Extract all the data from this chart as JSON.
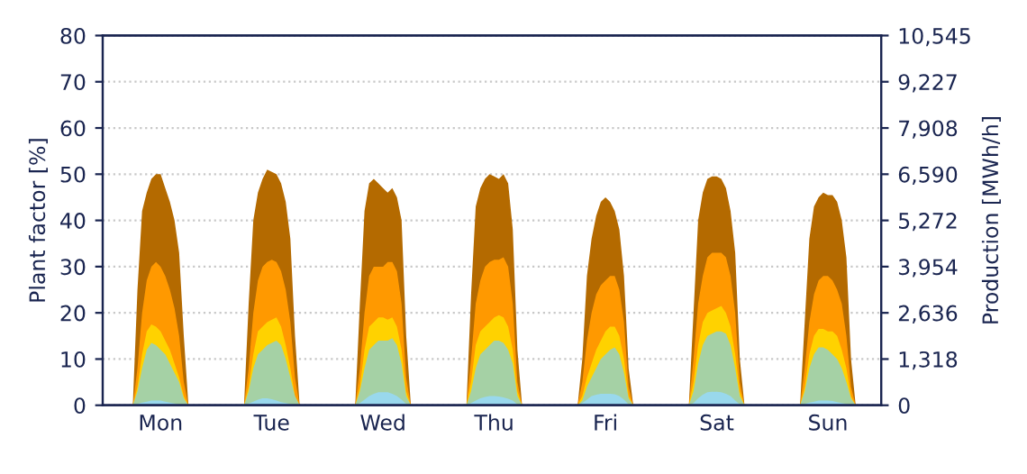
{
  "chart_data": {
    "type": "area",
    "ylabel": "Plant factor [%]",
    "y2label": "Production [MWh/h]",
    "categories": [
      null,
      null,
      null,
      null,
      null,
      null,
      null,
      null,
      null,
      null,
      null,
      null,
      "Mon",
      null,
      null,
      null,
      null,
      null,
      null,
      null,
      null,
      null,
      null,
      null,
      null,
      null,
      null,
      null,
      null,
      null,
      null,
      null,
      null,
      null,
      null,
      null,
      "Tue",
      null,
      null,
      null,
      null,
      null,
      null,
      null,
      null,
      null,
      null,
      null,
      null,
      null,
      null,
      null,
      null,
      null,
      null,
      null,
      null,
      null,
      null,
      null,
      "Wed",
      null,
      null,
      null,
      null,
      null,
      null,
      null,
      null,
      null,
      null,
      null,
      null,
      null,
      null,
      null,
      null,
      null,
      null,
      null,
      null,
      null,
      null,
      null,
      "Thu",
      null,
      null,
      null,
      null,
      null,
      null,
      null,
      null,
      null,
      null,
      null,
      null,
      null,
      null,
      null,
      null,
      null,
      null,
      null,
      null,
      null,
      null,
      null,
      "Fri",
      null,
      null,
      null,
      null,
      null,
      null,
      null,
      null,
      null,
      null,
      null,
      null,
      null,
      null,
      null,
      null,
      null,
      null,
      null,
      null,
      null,
      null,
      null,
      "Sat",
      null,
      null,
      null,
      null,
      null,
      null,
      null,
      null,
      null,
      null,
      null,
      null,
      null,
      null,
      null,
      null,
      null,
      null,
      null,
      null,
      null,
      null,
      null,
      "Sun",
      null,
      null,
      null,
      null,
      null,
      null,
      null,
      null,
      null,
      null,
      null
    ],
    "series": [
      {
        "color": "#b46a00",
        "values": [
          null,
          null,
          null,
          null,
          null,
          null,
          0,
          25,
          42,
          46,
          49,
          50,
          50,
          47,
          44,
          40,
          33,
          15,
          0,
          null,
          null,
          null,
          null,
          null,
          null,
          null,
          null,
          null,
          null,
          null,
          0,
          22,
          40,
          46,
          49,
          51,
          50.5,
          50,
          48,
          44,
          36,
          15,
          0,
          null,
          null,
          null,
          null,
          null,
          null,
          null,
          null,
          null,
          null,
          null,
          0,
          22,
          42,
          48,
          49,
          48,
          47,
          46,
          47,
          45,
          40,
          15,
          0,
          null,
          null,
          null,
          null,
          null,
          null,
          null,
          null,
          null,
          null,
          null,
          0,
          24,
          43,
          47,
          49,
          50,
          49.5,
          49,
          50,
          48,
          38,
          12,
          0,
          null,
          null,
          null,
          null,
          null,
          null,
          null,
          null,
          null,
          null,
          null,
          0,
          10,
          28,
          36,
          41,
          44,
          45,
          44,
          42,
          38,
          28,
          8,
          0,
          null,
          null,
          null,
          null,
          null,
          null,
          null,
          null,
          null,
          null,
          null,
          0,
          20,
          40,
          46,
          49,
          49.5,
          49.5,
          49,
          47,
          42,
          33,
          10,
          0,
          null,
          null,
          null,
          null,
          null,
          null,
          null,
          null,
          null,
          null,
          null,
          0,
          18,
          36,
          43,
          45,
          46,
          45.5,
          45.5,
          44,
          40,
          32,
          10,
          0,
          null,
          null,
          null,
          null,
          null
        ]
      },
      {
        "color": "#ff9900",
        "values": [
          null,
          null,
          null,
          null,
          null,
          null,
          0,
          8,
          20,
          27,
          30,
          31,
          30,
          28,
          25,
          21,
          15,
          5,
          0,
          null,
          null,
          null,
          null,
          null,
          null,
          null,
          null,
          null,
          null,
          null,
          0,
          8,
          20,
          27,
          30,
          31,
          31.5,
          31,
          29,
          25,
          18,
          6,
          0,
          null,
          null,
          null,
          null,
          null,
          null,
          null,
          null,
          null,
          null,
          null,
          0,
          8,
          20,
          28,
          30,
          30,
          30,
          31,
          31,
          29,
          22,
          6,
          0,
          null,
          null,
          null,
          null,
          null,
          null,
          null,
          null,
          null,
          null,
          null,
          0,
          10,
          22,
          27,
          30,
          31,
          31.5,
          31.5,
          32,
          30,
          22,
          5,
          0,
          null,
          null,
          null,
          null,
          null,
          null,
          null,
          null,
          null,
          null,
          null,
          0,
          5,
          14,
          20,
          24,
          26,
          27,
          28,
          28,
          25,
          18,
          4,
          0,
          null,
          null,
          null,
          null,
          null,
          null,
          null,
          null,
          null,
          null,
          null,
          0,
          10,
          22,
          28,
          32,
          33,
          33,
          33,
          32,
          28,
          20,
          5,
          0,
          null,
          null,
          null,
          null,
          null,
          null,
          null,
          null,
          null,
          null,
          null,
          0,
          8,
          18,
          24,
          27,
          28,
          28,
          27,
          25,
          22,
          15,
          4,
          0,
          null,
          null,
          null,
          null,
          null
        ]
      },
      {
        "color": "#ffd200",
        "values": [
          null,
          null,
          null,
          null,
          null,
          null,
          0,
          4,
          11,
          16,
          17.5,
          17,
          16,
          14,
          12,
          9,
          6,
          2,
          0,
          null,
          null,
          null,
          null,
          null,
          null,
          null,
          null,
          null,
          null,
          null,
          0,
          4,
          11,
          16,
          17,
          18,
          18.5,
          19,
          17,
          13,
          8,
          2,
          0,
          null,
          null,
          null,
          null,
          null,
          null,
          null,
          null,
          null,
          null,
          null,
          0,
          4,
          12,
          17,
          18,
          19,
          19,
          18.5,
          19,
          17,
          12,
          3,
          0,
          null,
          null,
          null,
          null,
          null,
          null,
          null,
          null,
          null,
          null,
          null,
          0,
          5,
          13,
          16,
          17,
          18,
          19,
          19.5,
          19,
          17,
          12,
          3,
          0,
          null,
          null,
          null,
          null,
          null,
          null,
          null,
          null,
          null,
          null,
          null,
          0,
          2,
          6,
          9,
          12,
          14,
          16,
          17,
          17,
          15,
          10,
          2,
          0,
          null,
          null,
          null,
          null,
          null,
          null,
          null,
          null,
          null,
          null,
          null,
          0,
          5,
          13,
          18,
          20,
          20.5,
          21,
          21.5,
          20,
          17,
          11,
          3,
          0,
          null,
          null,
          null,
          null,
          null,
          null,
          null,
          null,
          null,
          null,
          null,
          0,
          4,
          11,
          15,
          16.5,
          16.5,
          16,
          16,
          15,
          12,
          8,
          2,
          0,
          null,
          null,
          null,
          null,
          null
        ]
      },
      {
        "color": "#a5d1a5",
        "values": [
          null,
          null,
          null,
          null,
          null,
          null,
          0,
          3,
          8,
          12,
          13.5,
          13,
          12,
          11,
          9,
          7,
          5,
          1.5,
          0,
          null,
          null,
          null,
          null,
          null,
          null,
          null,
          null,
          null,
          null,
          null,
          0,
          3,
          8,
          11,
          12,
          13,
          13.5,
          14,
          13,
          10,
          6,
          2,
          0,
          null,
          null,
          null,
          null,
          null,
          null,
          null,
          null,
          null,
          null,
          null,
          0,
          3,
          8,
          12,
          13,
          14,
          14,
          14,
          14.5,
          13,
          9,
          2,
          0,
          null,
          null,
          null,
          null,
          null,
          null,
          null,
          null,
          null,
          null,
          null,
          0,
          3,
          8,
          11,
          12,
          13,
          14,
          14,
          13.5,
          12,
          9,
          2,
          0,
          null,
          null,
          null,
          null,
          null,
          null,
          null,
          null,
          null,
          null,
          null,
          0,
          1,
          4,
          6,
          8,
          10,
          11,
          12,
          12.5,
          11,
          7,
          1.5,
          0,
          null,
          null,
          null,
          null,
          null,
          null,
          null,
          null,
          null,
          null,
          null,
          0,
          3,
          9,
          13,
          15,
          15.5,
          16,
          16,
          15.5,
          13,
          8,
          2,
          0,
          null,
          null,
          null,
          null,
          null,
          null,
          null,
          null,
          null,
          null,
          null,
          0,
          3,
          8,
          11,
          12.5,
          12.5,
          12,
          11,
          10,
          8,
          5,
          1.5,
          0,
          null,
          null,
          null,
          null,
          null
        ]
      },
      {
        "color": "#99d8ec",
        "values": [
          null,
          null,
          null,
          null,
          null,
          null,
          0,
          0.3,
          0.6,
          0.8,
          1,
          1,
          1,
          0.8,
          0.6,
          0.4,
          0.2,
          0.1,
          0,
          null,
          null,
          null,
          null,
          null,
          null,
          null,
          null,
          null,
          null,
          null,
          0,
          0.4,
          0.8,
          1.2,
          1.5,
          1.5,
          1.3,
          1,
          0.7,
          0.5,
          0.3,
          0.1,
          0,
          null,
          null,
          null,
          null,
          null,
          null,
          null,
          null,
          null,
          null,
          null,
          0,
          0.5,
          1.2,
          2,
          2.5,
          2.8,
          2.8,
          2.8,
          2.5,
          2,
          1.2,
          0.3,
          0,
          null,
          null,
          null,
          null,
          null,
          null,
          null,
          null,
          null,
          null,
          null,
          0,
          0.5,
          1,
          1.5,
          1.8,
          2,
          2,
          1.9,
          1.7,
          1.4,
          1,
          0.2,
          0,
          null,
          null,
          null,
          null,
          null,
          null,
          null,
          null,
          null,
          null,
          null,
          0,
          0.5,
          1.2,
          2,
          2.3,
          2.5,
          2.5,
          2.5,
          2.4,
          2,
          1.2,
          0.2,
          0,
          null,
          null,
          null,
          null,
          null,
          null,
          null,
          null,
          null,
          null,
          null,
          0,
          0.5,
          1.5,
          2.3,
          2.8,
          2.9,
          2.9,
          2.8,
          2.5,
          2,
          1,
          0.2,
          0,
          null,
          null,
          null,
          null,
          null,
          null,
          null,
          null,
          null,
          null,
          null,
          0,
          0.3,
          0.6,
          0.8,
          1,
          1,
          1,
          0.9,
          0.7,
          0.5,
          0.3,
          0.1,
          0,
          null,
          null,
          null,
          null,
          null
        ]
      }
    ],
    "ylim": [
      0,
      80
    ],
    "yticks": [
      0,
      10,
      20,
      30,
      40,
      50,
      60,
      70,
      80
    ],
    "y2lim": [
      0,
      10545
    ],
    "y2ticks": [
      0,
      {
        "value": 1318,
        "label": "1,318"
      },
      {
        "value": 2636,
        "label": "2,636"
      },
      {
        "value": 3954,
        "label": "3,954"
      },
      {
        "value": 5272,
        "label": "5,272"
      },
      {
        "value": 6590,
        "label": "6,590"
      },
      {
        "value": 7908,
        "label": "7,908"
      },
      {
        "value": 9227,
        "label": "9,227"
      },
      {
        "value": 10545,
        "label": "10,545"
      }
    ],
    "grid": true
  }
}
